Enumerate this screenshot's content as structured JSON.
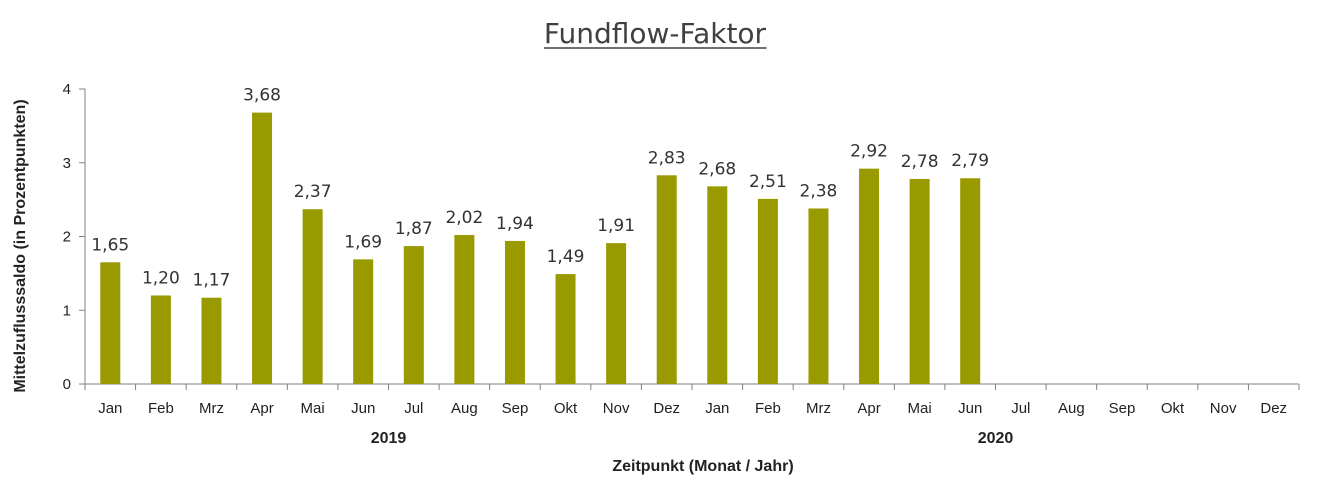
{
  "chart_data": {
    "type": "bar",
    "title": "Fundflow-Faktor",
    "xlabel": "Zeitpunkt (Monat / Jahr)",
    "ylabel": "Mittelzuflusssaldo (in Prozentpunkten)",
    "ylim": [
      0,
      4
    ],
    "yticks": [
      "0",
      "1",
      "2",
      "3",
      "4"
    ],
    "categories": [
      "Jan",
      "Feb",
      "Mrz",
      "Apr",
      "Mai",
      "Jun",
      "Jul",
      "Aug",
      "Sep",
      "Okt",
      "Nov",
      "Dez",
      "Jan",
      "Feb",
      "Mrz",
      "Apr",
      "Mai",
      "Jun",
      "Jul",
      "Aug",
      "Sep",
      "Okt",
      "Nov",
      "Dez"
    ],
    "values": [
      1.65,
      1.2,
      1.17,
      3.68,
      2.37,
      1.69,
      1.87,
      2.02,
      1.94,
      1.49,
      1.91,
      2.83,
      2.68,
      2.51,
      2.38,
      2.92,
      2.78,
      2.79,
      null,
      null,
      null,
      null,
      null,
      null
    ],
    "data_labels": [
      "1,65",
      "1,20",
      "1,17",
      "3,68",
      "2,37",
      "1,69",
      "1,87",
      "2,02",
      "1,94",
      "1,49",
      "1,91",
      "2,83",
      "2,68",
      "2,51",
      "2,38",
      "2,92",
      "2,78",
      "2,79",
      "",
      "",
      "",
      "",
      "",
      ""
    ],
    "years": [
      {
        "label": "2019",
        "start": 0,
        "end": 11
      },
      {
        "label": "2020",
        "start": 12,
        "end": 23
      }
    ],
    "bar_color": "#999900",
    "grid": false,
    "legend": "none"
  }
}
